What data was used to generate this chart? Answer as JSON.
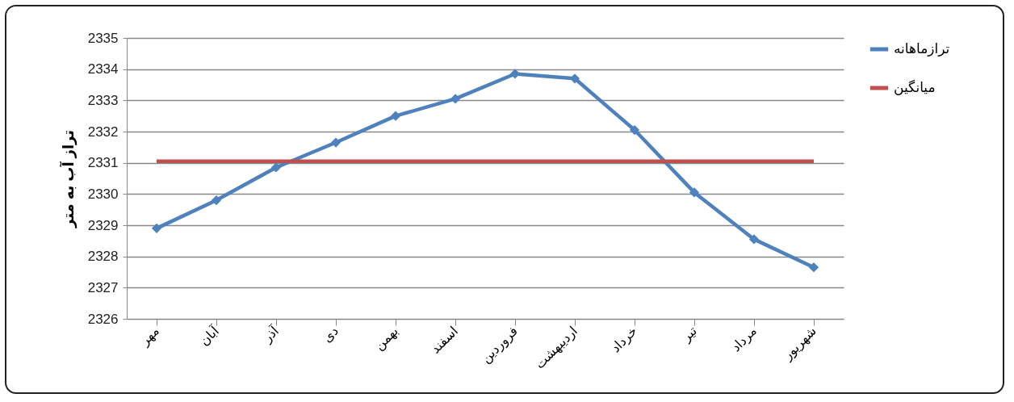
{
  "chart_data": {
    "type": "line",
    "ylabel": "تراز آب به متر",
    "categories": [
      "مهر",
      "آبان",
      "آذر",
      "دی",
      "بهمن",
      "اسفند",
      "فروردین",
      "اردیبهشت",
      "خرداد",
      "تیر",
      "مرداد",
      "شهریور"
    ],
    "series": [
      {
        "name": "ترازماهانه",
        "color": "#4f81bd",
        "values": [
          2328.9,
          2329.8,
          2330.85,
          2331.65,
          2332.5,
          2333.05,
          2333.85,
          2333.7,
          2332.05,
          2330.05,
          2328.55,
          2327.65
        ]
      }
    ],
    "ref_lines": [
      {
        "axis": "y",
        "value": 2331.05,
        "label": "میانگین",
        "color": "#c0504d"
      }
    ],
    "ylim": [
      2326,
      2335
    ],
    "yticks": [
      2326,
      2327,
      2328,
      2329,
      2330,
      2331,
      2332,
      2333,
      2334,
      2335
    ],
    "grid": "y",
    "legend": "right",
    "marker": "diamond",
    "line_style": "solid"
  }
}
